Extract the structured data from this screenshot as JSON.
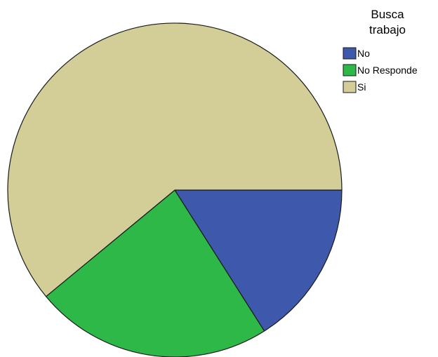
{
  "chart_data": {
    "type": "pie",
    "legend": {
      "title_lines": [
        "Busca",
        "trabajo"
      ],
      "position": "top-right"
    },
    "slices": [
      {
        "label": "No",
        "value": 16,
        "color": "#3e58ac"
      },
      {
        "label": "No Responde",
        "value": 23,
        "color": "#2eb848"
      },
      {
        "label": "Si",
        "value": 61,
        "color": "#d3ce97"
      }
    ],
    "start_angle_deg": 0,
    "direction": "clockwise",
    "edge_color": "#1a1a1a"
  }
}
